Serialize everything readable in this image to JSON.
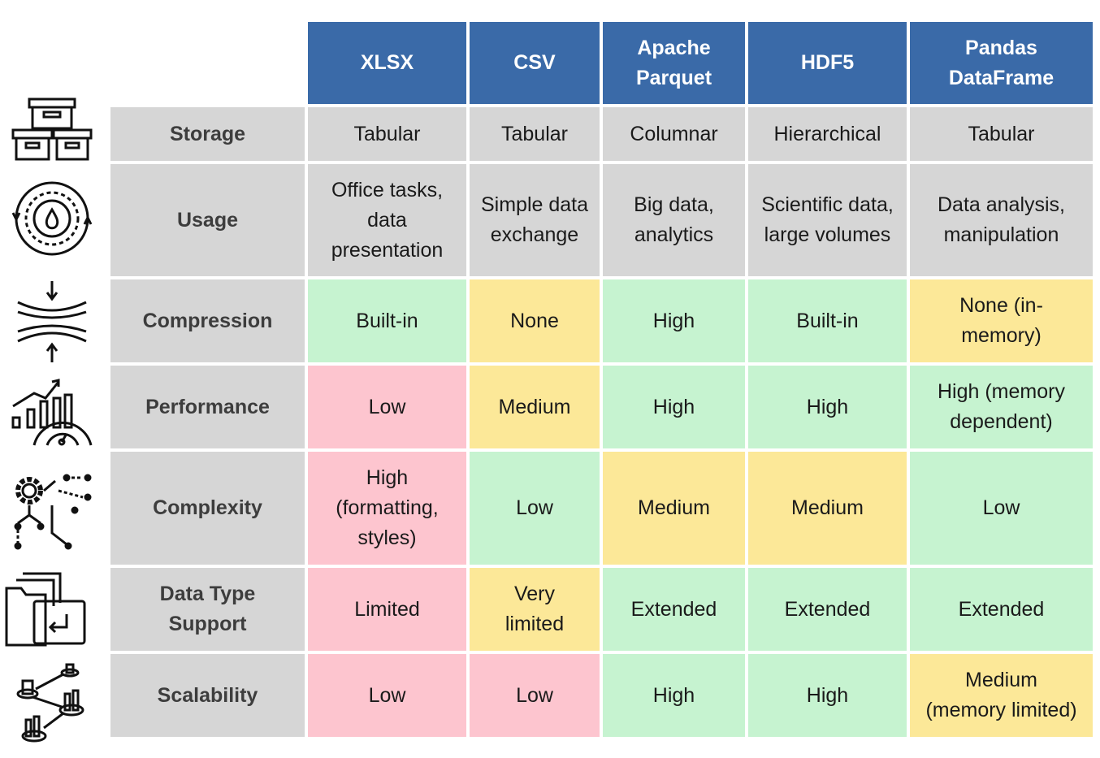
{
  "header": {
    "formats": [
      "XLSX",
      "CSV",
      "Apache\nParquet",
      "HDF5",
      "Pandas\nDataFrame"
    ]
  },
  "rows": [
    {
      "label": "Storage",
      "icon": "storage-boxes-icon",
      "cells": [
        {
          "text": "Tabular",
          "rating": "neutral"
        },
        {
          "text": "Tabular",
          "rating": "neutral"
        },
        {
          "text": "Columnar",
          "rating": "neutral"
        },
        {
          "text": "Hierarchical",
          "rating": "neutral"
        },
        {
          "text": "Tabular",
          "rating": "neutral"
        }
      ]
    },
    {
      "label": "Usage",
      "icon": "gear-cycle-icon",
      "cells": [
        {
          "text": "Office tasks,\ndata\npresentation",
          "rating": "neutral"
        },
        {
          "text": "Simple data\nexchange",
          "rating": "neutral"
        },
        {
          "text": "Big data,\nanalytics",
          "rating": "neutral"
        },
        {
          "text": "Scientific data,\nlarge volumes",
          "rating": "neutral"
        },
        {
          "text": "Data analysis,\nmanipulation",
          "rating": "neutral"
        }
      ]
    },
    {
      "label": "Compression",
      "icon": "compression-arrows-icon",
      "cells": [
        {
          "text": "Built-in",
          "rating": "good"
        },
        {
          "text": "None",
          "rating": "medium"
        },
        {
          "text": "High",
          "rating": "good"
        },
        {
          "text": "Built-in",
          "rating": "good"
        },
        {
          "text": "None (in-\nmemory)",
          "rating": "medium"
        }
      ]
    },
    {
      "label": "Performance",
      "icon": "performance-gauge-icon",
      "cells": [
        {
          "text": "Low",
          "rating": "bad"
        },
        {
          "text": "Medium",
          "rating": "medium"
        },
        {
          "text": "High",
          "rating": "good"
        },
        {
          "text": "High",
          "rating": "good"
        },
        {
          "text": "High (memory\ndependent)",
          "rating": "good"
        }
      ]
    },
    {
      "label": "Complexity",
      "icon": "complexity-network-icon",
      "cells": [
        {
          "text": "High\n(formatting,\nstyles)",
          "rating": "bad"
        },
        {
          "text": "Low",
          "rating": "good"
        },
        {
          "text": "Medium",
          "rating": "medium"
        },
        {
          "text": "Medium",
          "rating": "medium"
        },
        {
          "text": "Low",
          "rating": "good"
        }
      ]
    },
    {
      "label": "Data Type\nSupport",
      "icon": "file-folders-icon",
      "cells": [
        {
          "text": "Limited",
          "rating": "bad"
        },
        {
          "text": "Very\nlimited",
          "rating": "medium"
        },
        {
          "text": "Extended",
          "rating": "good"
        },
        {
          "text": "Extended",
          "rating": "good"
        },
        {
          "text": "Extended",
          "rating": "good"
        }
      ]
    },
    {
      "label": "Scalability",
      "icon": "scalability-network-icon",
      "cells": [
        {
          "text": "Low",
          "rating": "bad"
        },
        {
          "text": "Low",
          "rating": "bad"
        },
        {
          "text": "High",
          "rating": "good"
        },
        {
          "text": "High",
          "rating": "good"
        },
        {
          "text": "Medium\n(memory limited)",
          "rating": "medium"
        }
      ]
    }
  ],
  "colors": {
    "header": "#3a6aa8",
    "neutral": "#d6d6d6",
    "good": "#c6f3d0",
    "medium": "#fce898",
    "bad": "#fdc5cf"
  }
}
